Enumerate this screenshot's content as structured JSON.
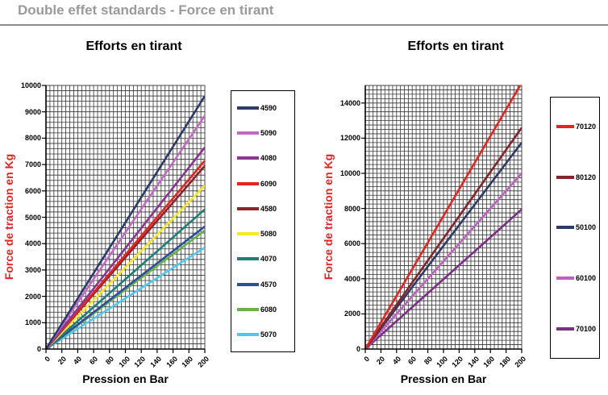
{
  "page": {
    "title": "Double effet standards - Force en tirant"
  },
  "chart_data": [
    {
      "type": "line",
      "title": "Efforts en tirant",
      "xlabel": "Pression en Bar",
      "ylabel": "Force de traction en Kg",
      "x_range": [
        0,
        200
      ],
      "y_range": [
        0,
        10000
      ],
      "x_ticks": [
        0,
        20,
        40,
        60,
        80,
        100,
        120,
        140,
        160,
        180,
        200
      ],
      "y_ticks": [
        0,
        1000,
        2000,
        3000,
        4000,
        5000,
        6000,
        7000,
        8000,
        9000,
        10000
      ],
      "x_minor_step": 5,
      "y_minor_step": 200,
      "grid": true,
      "legend_position": "right",
      "x": [
        0,
        200
      ],
      "series": [
        {
          "name": "4590",
          "color": "#2E3A6B",
          "values": [
            0,
            9600
          ]
        },
        {
          "name": "5090",
          "color": "#C469C4",
          "values": [
            0,
            8850
          ]
        },
        {
          "name": "4080",
          "color": "#8D3594",
          "values": [
            0,
            7650
          ]
        },
        {
          "name": "6090",
          "color": "#E8231E",
          "values": [
            0,
            7150
          ]
        },
        {
          "name": "4580",
          "color": "#8C2429",
          "values": [
            0,
            6950
          ]
        },
        {
          "name": "5080",
          "color": "#F5E926",
          "values": [
            0,
            6200
          ]
        },
        {
          "name": "4070",
          "color": "#1D8077",
          "values": [
            0,
            5300
          ]
        },
        {
          "name": "4570",
          "color": "#2F4D9E",
          "values": [
            0,
            4650
          ]
        },
        {
          "name": "6080",
          "color": "#67B346",
          "values": [
            0,
            4500
          ]
        },
        {
          "name": "5070",
          "color": "#4FC8F0",
          "values": [
            0,
            3850
          ]
        }
      ]
    },
    {
      "type": "line",
      "title": "Efforts en tirant",
      "xlabel": "Pression en Bar",
      "ylabel": "Force de traction en Kg",
      "x_range": [
        0,
        200
      ],
      "y_range": [
        0,
        15000
      ],
      "x_ticks": [
        0,
        20,
        40,
        60,
        80,
        100,
        120,
        140,
        160,
        180,
        200
      ],
      "y_ticks": [
        0,
        2000,
        4000,
        6000,
        8000,
        10000,
        12000,
        14000
      ],
      "x_minor_step": 5,
      "y_minor_step": 250,
      "grid": true,
      "legend_position": "right",
      "x": [
        0,
        200
      ],
      "series": [
        {
          "name": "70120",
          "color": "#E8231E",
          "values": [
            0,
            15150
          ]
        },
        {
          "name": "80120",
          "color": "#84252B",
          "values": [
            0,
            12600
          ]
        },
        {
          "name": "50100",
          "color": "#2E3A6B",
          "values": [
            0,
            11750
          ]
        },
        {
          "name": "60100",
          "color": "#BC62BC",
          "values": [
            0,
            10000
          ]
        },
        {
          "name": "70100",
          "color": "#7D2F87",
          "values": [
            0,
            7950
          ]
        }
      ]
    }
  ],
  "style": {
    "accent_red": "#E8231E",
    "title_gray": "#9A9A9A",
    "grid_color": "#333333"
  }
}
